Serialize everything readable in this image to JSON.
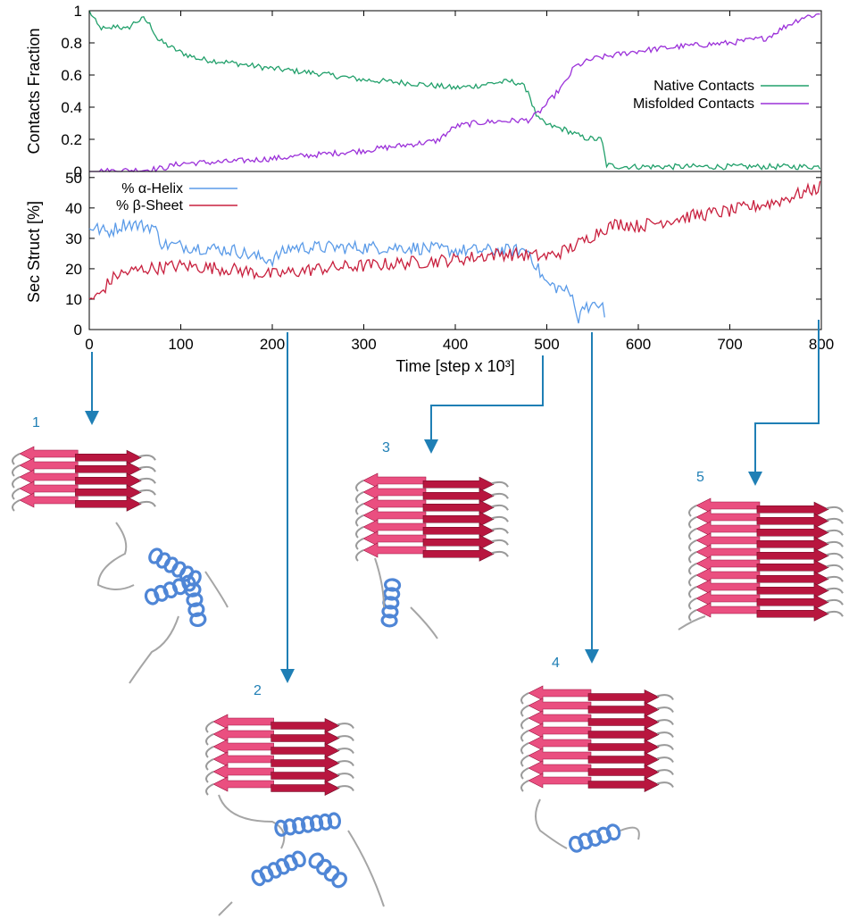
{
  "chart_data": [
    {
      "type": "line",
      "ylabel": "Contacts Fraction",
      "xlim": [
        0,
        800
      ],
      "ylim": [
        0,
        1
      ],
      "yticks": [
        "0",
        "0.2",
        "0.4",
        "0.6",
        "0.8",
        "1"
      ],
      "legend": "top-right",
      "series": [
        {
          "name": "Native Contacts",
          "color": "#22a06b",
          "x": [
            0,
            10,
            20,
            30,
            40,
            50,
            60,
            68,
            75,
            90,
            100,
            120,
            150,
            200,
            250,
            300,
            350,
            400,
            420,
            440,
            460,
            470,
            480,
            485,
            490,
            500,
            520,
            540,
            555,
            560,
            565,
            580,
            600,
            700,
            800
          ],
          "values": [
            1.0,
            0.9,
            0.88,
            0.91,
            0.88,
            0.93,
            0.95,
            0.9,
            0.82,
            0.77,
            0.74,
            0.7,
            0.68,
            0.64,
            0.61,
            0.57,
            0.55,
            0.52,
            0.53,
            0.55,
            0.56,
            0.55,
            0.5,
            0.4,
            0.33,
            0.29,
            0.26,
            0.21,
            0.2,
            0.2,
            0.04,
            0.03,
            0.03,
            0.03,
            0.03
          ]
        },
        {
          "name": "Misfolded Contacts",
          "color": "#9b30d9",
          "x": [
            0,
            60,
            80,
            100,
            150,
            200,
            300,
            380,
            400,
            420,
            440,
            480,
            490,
            500,
            520,
            530,
            550,
            600,
            650,
            700,
            740,
            760,
            780,
            800
          ],
          "values": [
            0.0,
            0.01,
            0.02,
            0.05,
            0.06,
            0.08,
            0.13,
            0.19,
            0.28,
            0.3,
            0.31,
            0.32,
            0.36,
            0.42,
            0.55,
            0.65,
            0.7,
            0.75,
            0.78,
            0.8,
            0.83,
            0.9,
            0.96,
            0.98
          ]
        }
      ]
    },
    {
      "type": "line",
      "ylabel": "Sec Struct [%]",
      "xlabel": "Time [step x 10³]",
      "xlim": [
        0,
        800
      ],
      "ylim": [
        0,
        52
      ],
      "yticks": [
        "0",
        "10",
        "20",
        "30",
        "40",
        "50"
      ],
      "xticks": [
        "0",
        "100",
        "200",
        "300",
        "400",
        "500",
        "600",
        "700",
        "800"
      ],
      "legend": "top-left",
      "series": [
        {
          "name": "% α-Helix",
          "color": "#5b9be8",
          "x": [
            0,
            20,
            40,
            60,
            70,
            80,
            120,
            160,
            180,
            200,
            220,
            260,
            300,
            350,
            400,
            460,
            480,
            490,
            500,
            510,
            520,
            530,
            535,
            540,
            550,
            560,
            565
          ],
          "values": [
            34,
            32,
            35,
            34,
            34,
            28,
            27,
            26,
            24,
            23,
            27,
            27,
            27,
            27,
            26,
            26,
            26,
            20,
            15,
            14,
            13,
            10,
            2,
            9,
            7,
            9,
            0
          ]
        },
        {
          "name": "% β-Sheet",
          "color": "#c8203e",
          "x": [
            0,
            10,
            20,
            30,
            60,
            100,
            150,
            200,
            250,
            300,
            350,
            400,
            450,
            500,
            520,
            540,
            560,
            580,
            600,
            650,
            700,
            750,
            780,
            800
          ],
          "values": [
            10,
            11,
            15,
            18,
            20,
            21,
            20,
            18,
            20,
            21,
            22,
            23,
            25,
            24,
            26,
            29,
            33,
            35,
            34,
            37,
            39,
            42,
            45,
            47
          ]
        }
      ]
    }
  ],
  "snapshots": [
    {
      "label": "1",
      "time": 0
    },
    {
      "label": "2",
      "time": 215
    },
    {
      "label": "3",
      "time": 490
    },
    {
      "label": "4",
      "time": 550
    },
    {
      "label": "5",
      "time": 795
    }
  ]
}
